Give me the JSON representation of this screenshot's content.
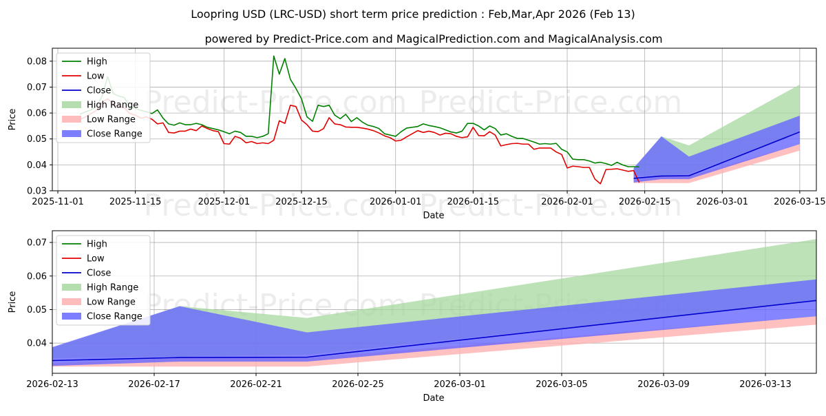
{
  "title": "Loopring USD (LRC-USD) short term price prediction : Feb,Mar,Apr 2026 (Feb 13)",
  "subtitle": "powered by Predict-Price.com and MagicalPrediction.com and MagicalAnalysis.com",
  "watermark": "Predict-Price.com",
  "colors": {
    "high": "#008000",
    "low": "#e00000",
    "close": "#0000cc",
    "high_range": "#a8d8a0",
    "low_range": "#ffb0b0",
    "close_range": "#6666ff"
  },
  "legend": [
    {
      "label": "High",
      "kind": "line",
      "color": "#008000"
    },
    {
      "label": "Low",
      "kind": "line",
      "color": "#e00000"
    },
    {
      "label": "Close",
      "kind": "line",
      "color": "#0000cc"
    },
    {
      "label": "High Range",
      "kind": "patch",
      "color": "#a8d8a0"
    },
    {
      "label": "Low Range",
      "kind": "patch",
      "color": "#ffb0b0"
    },
    {
      "label": "Close Range",
      "kind": "patch",
      "color": "#6666ff"
    }
  ],
  "chart_data": [
    {
      "type": "line",
      "name": "overview",
      "xlabel": "Date",
      "ylabel": "Price",
      "xlim": [
        "2025-10-31",
        "2026-03-18"
      ],
      "ylim": [
        0.03,
        0.085
      ],
      "x_ticks": [
        "2025-11-01",
        "2025-11-15",
        "2025-12-01",
        "2025-12-15",
        "2026-01-01",
        "2026-01-15",
        "2026-02-01",
        "2026-02-15",
        "2026-03-01",
        "2026-03-15"
      ],
      "y_ticks": [
        "0.03",
        "0.04",
        "0.05",
        "0.06",
        "0.07",
        "0.08"
      ],
      "history_start": "2025-11-05",
      "high": [
        0.0595,
        0.0605,
        0.0612,
        0.0628,
        0.0665,
        0.074,
        0.0675,
        0.0665,
        0.066,
        0.0625,
        0.0618,
        0.061,
        0.0605,
        0.0598,
        0.0612,
        0.058,
        0.0558,
        0.0553,
        0.0562,
        0.0555,
        0.0555,
        0.056,
        0.0555,
        0.0545,
        0.054,
        0.0535,
        0.0528,
        0.052,
        0.053,
        0.0525,
        0.051,
        0.051,
        0.0505,
        0.051,
        0.052,
        0.082,
        0.075,
        0.081,
        0.073,
        0.0695,
        0.0655,
        0.0585,
        0.0568,
        0.063,
        0.0625,
        0.063,
        0.0592,
        0.0578,
        0.0595,
        0.0567,
        0.0582,
        0.0565,
        0.0553,
        0.0548,
        0.054,
        0.052,
        0.0515,
        0.051,
        0.0528,
        0.0542,
        0.0545,
        0.0548,
        0.0558,
        0.0552,
        0.0548,
        0.0543,
        0.0535,
        0.0527,
        0.0523,
        0.053,
        0.056,
        0.056,
        0.055,
        0.0535,
        0.055,
        0.054,
        0.0515,
        0.052,
        0.051,
        0.0502,
        0.0502,
        0.0495,
        0.0488,
        0.048,
        0.0482,
        0.048,
        0.0483,
        0.046,
        0.045,
        0.0422,
        0.042,
        0.042,
        0.0415,
        0.0407,
        0.041,
        0.0405,
        0.0398,
        0.041,
        0.04,
        0.0393,
        0.0393,
        0.0392
      ],
      "low": [
        0.0575,
        0.0585,
        0.0598,
        0.061,
        0.064,
        0.0655,
        0.0635,
        0.0625,
        0.062,
        0.0598,
        0.0592,
        0.058,
        0.0585,
        0.0576,
        0.0558,
        0.0562,
        0.0525,
        0.0523,
        0.053,
        0.053,
        0.0538,
        0.0532,
        0.055,
        0.054,
        0.0532,
        0.0528,
        0.0482,
        0.048,
        0.051,
        0.0503,
        0.0485,
        0.049,
        0.0482,
        0.0485,
        0.0482,
        0.0495,
        0.057,
        0.056,
        0.063,
        0.0625,
        0.0573,
        0.0555,
        0.053,
        0.0528,
        0.054,
        0.0582,
        0.0558,
        0.0555,
        0.0546,
        0.0545,
        0.0545,
        0.0542,
        0.0538,
        0.0532,
        0.0523,
        0.0512,
        0.0505,
        0.0492,
        0.0495,
        0.0508,
        0.052,
        0.0532,
        0.0525,
        0.053,
        0.0525,
        0.0515,
        0.0522,
        0.052,
        0.051,
        0.0505,
        0.0508,
        0.0545,
        0.0513,
        0.0512,
        0.0528,
        0.0515,
        0.0473,
        0.0478,
        0.0482,
        0.0483,
        0.048,
        0.048,
        0.046,
        0.0465,
        0.0465,
        0.0465,
        0.045,
        0.044,
        0.0388,
        0.0395,
        0.0393,
        0.039,
        0.039,
        0.0345,
        0.0327,
        0.0382,
        0.0383,
        0.0385,
        0.038,
        0.0375,
        0.0378,
        0.0332
      ],
      "forecast": {
        "dates": [
          "2026-02-13",
          "2026-02-18",
          "2026-02-23",
          "2026-03-15"
        ],
        "high_upper": [
          0.0385,
          0.051,
          0.0475,
          0.071
        ],
        "high_lower": [
          0.0355,
          0.036,
          0.0365,
          0.0525
        ],
        "low_upper": [
          0.034,
          0.0355,
          0.0355,
          0.048
        ],
        "low_lower": [
          0.033,
          0.033,
          0.033,
          0.0455
        ],
        "close_upper": [
          0.0388,
          0.051,
          0.0432,
          0.059
        ],
        "close_lower": [
          0.0332,
          0.0345,
          0.0345,
          0.048
        ],
        "close": [
          0.0348,
          0.0357,
          0.0358,
          0.0527
        ]
      }
    },
    {
      "type": "line",
      "name": "zoom",
      "xlabel": "Date",
      "ylabel": "Price",
      "xlim": [
        "2026-02-13",
        "2026-03-15"
      ],
      "ylim": [
        0.031,
        0.0735
      ],
      "x_ticks": [
        "2026-02-13",
        "2026-02-17",
        "2026-02-21",
        "2026-02-25",
        "2026-03-01",
        "2026-03-05",
        "2026-03-09",
        "2026-03-13"
      ],
      "y_ticks": [
        "0.04",
        "0.05",
        "0.06",
        "0.07"
      ],
      "forecast": {
        "dates": [
          "2026-02-13",
          "2026-02-18",
          "2026-02-23",
          "2026-03-15"
        ],
        "high_upper": [
          0.0385,
          0.051,
          0.0475,
          0.071
        ],
        "high_lower": [
          0.0355,
          0.036,
          0.0365,
          0.0525
        ],
        "low_upper": [
          0.034,
          0.0355,
          0.0355,
          0.048
        ],
        "low_lower": [
          0.033,
          0.033,
          0.033,
          0.0455
        ],
        "close_upper": [
          0.0388,
          0.051,
          0.0432,
          0.059
        ],
        "close_lower": [
          0.0332,
          0.0345,
          0.0345,
          0.048
        ],
        "close": [
          0.0348,
          0.0357,
          0.0358,
          0.0527
        ]
      }
    }
  ]
}
